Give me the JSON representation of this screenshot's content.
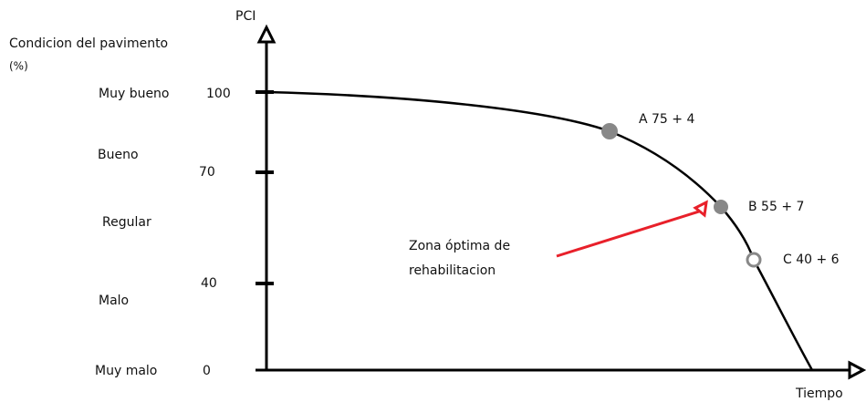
{
  "y_axis": {
    "title": "PCI",
    "label": "Condicion del pavimento",
    "unit": "(%)",
    "ticks": [
      "100",
      "70",
      "40",
      "0"
    ]
  },
  "conditions": [
    "Muy bueno",
    "Bueno",
    "Regular",
    "Malo",
    "Muy malo"
  ],
  "x_axis": {
    "title": "Tiempo"
  },
  "points": [
    {
      "label": "A 75 + 4"
    },
    {
      "label": "B 55 + 7"
    },
    {
      "label": "C 40 + 6"
    }
  ],
  "annotation": {
    "lines": [
      "Zona óptima de",
      "rehabilitacion"
    ]
  }
}
